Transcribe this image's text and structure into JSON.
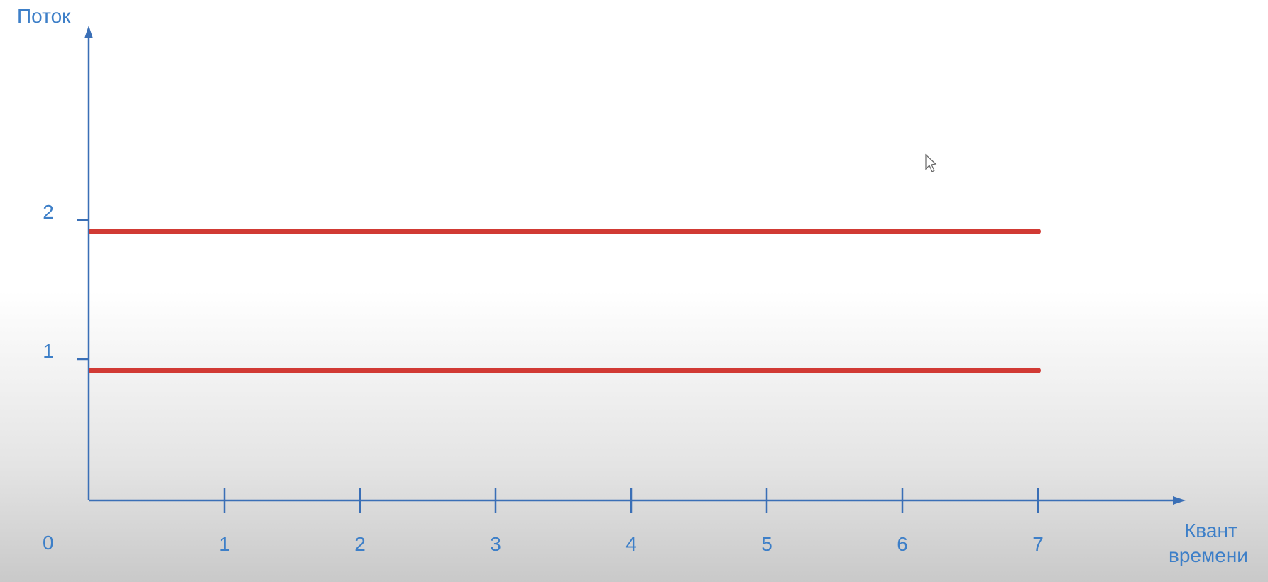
{
  "chart_data": {
    "type": "line",
    "ylabel": "Поток",
    "xlabel": [
      "Квант",
      "времени"
    ],
    "origin_label": "0",
    "x_ticks": [
      "1",
      "2",
      "3",
      "4",
      "5",
      "6",
      "7"
    ],
    "y_ticks": [
      "1",
      "2"
    ],
    "xlim": [
      0,
      7
    ],
    "ylim": [
      0,
      2
    ],
    "grid": false,
    "series": [
      {
        "x": [
          0,
          7
        ],
        "y": [
          1,
          1
        ]
      },
      {
        "x": [
          0,
          7
        ],
        "y": [
          2,
          2
        ]
      }
    ],
    "colors": {
      "axis": "#3a6fb6",
      "label": "#3d7fc8",
      "series": "#d13a34"
    }
  }
}
